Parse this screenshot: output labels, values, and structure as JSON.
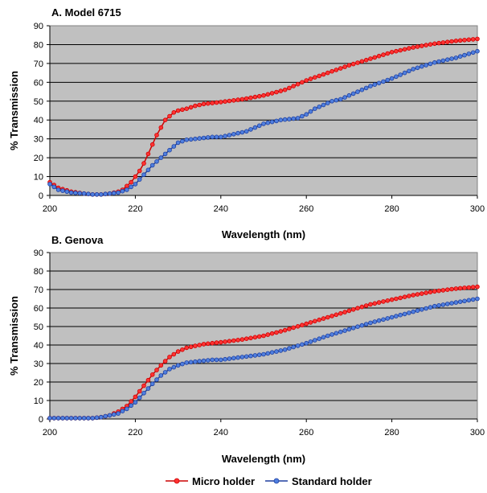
{
  "legend": [
    {
      "name": "Micro holder",
      "color": "#cc0000",
      "fill": "#ff3333"
    },
    {
      "name": "Standard holder",
      "color": "#1f3f9f",
      "fill": "#4f7fdf"
    }
  ],
  "chart_data": [
    {
      "type": "line",
      "title": "A. Model 6715",
      "xlabel": "Wavelength (nm)",
      "ylabel": "% Transmission",
      "xlim": [
        200,
        300
      ],
      "ylim": [
        0,
        90
      ],
      "xticks": [
        200,
        220,
        240,
        260,
        280,
        300
      ],
      "yticks": [
        0,
        10,
        20,
        30,
        40,
        50,
        60,
        70,
        80,
        90
      ],
      "grid": "horizontal",
      "plot_background": "#c0c0c0",
      "series": [
        {
          "name": "Micro holder",
          "x": [
            200,
            202,
            205,
            208,
            210,
            212,
            214,
            216,
            217,
            218,
            219,
            220,
            221,
            222,
            223,
            224,
            225,
            226,
            227,
            228,
            229,
            230,
            232,
            234,
            236,
            240,
            245,
            250,
            255,
            260,
            265,
            270,
            275,
            280,
            285,
            290,
            295,
            300
          ],
          "y": [
            7,
            4,
            2,
            1,
            0.5,
            0.5,
            1,
            2,
            3,
            5,
            7,
            10,
            13,
            17,
            22,
            27,
            32,
            36,
            40,
            42,
            44,
            45,
            46,
            47.5,
            48.5,
            49.5,
            51,
            53,
            56,
            61,
            65,
            69,
            72.5,
            76,
            78.5,
            80.5,
            82,
            83
          ]
        },
        {
          "name": "Standard holder",
          "x": [
            200,
            202,
            205,
            208,
            210,
            212,
            214,
            216,
            218,
            220,
            222,
            224,
            226,
            228,
            230,
            232,
            234,
            236,
            238,
            240,
            242,
            244,
            246,
            248,
            250,
            252,
            254,
            256,
            258,
            260,
            262,
            264,
            266,
            268,
            270,
            275,
            280,
            285,
            290,
            295,
            300
          ],
          "y": [
            6,
            3,
            1.5,
            1,
            0.5,
            0.5,
            1,
            1.5,
            3,
            6,
            11,
            16,
            20,
            24,
            28,
            29.5,
            30,
            30.5,
            31,
            31,
            32,
            33,
            34,
            36,
            38,
            39,
            40,
            40.5,
            41,
            43,
            46,
            48,
            50,
            51,
            53,
            58,
            62,
            67,
            70.5,
            73,
            76.5
          ]
        }
      ]
    },
    {
      "type": "line",
      "title": "B. Genova",
      "xlabel": "Wavelength (nm)",
      "ylabel": "% Transmission",
      "xlim": [
        200,
        300
      ],
      "ylim": [
        0,
        90
      ],
      "xticks": [
        200,
        220,
        240,
        260,
        280,
        300
      ],
      "yticks": [
        0,
        10,
        20,
        30,
        40,
        50,
        60,
        70,
        80,
        90
      ],
      "grid": "horizontal",
      "plot_background": "#c0c0c0",
      "series": [
        {
          "name": "Micro holder",
          "x": [
            200,
            205,
            210,
            212,
            214,
            216,
            218,
            220,
            222,
            224,
            226,
            228,
            230,
            232,
            234,
            236,
            238,
            240,
            245,
            250,
            255,
            260,
            265,
            270,
            275,
            280,
            285,
            290,
            295,
            300
          ],
          "y": [
            0.5,
            0.5,
            0.5,
            1,
            2,
            4,
            7,
            12,
            18,
            24,
            29,
            33.5,
            36.5,
            38.5,
            39.5,
            40.5,
            41,
            41.5,
            43,
            45,
            48,
            51.5,
            55,
            58.5,
            62,
            64.5,
            67,
            69,
            70.5,
            71.5
          ]
        },
        {
          "name": "Standard holder",
          "x": [
            200,
            205,
            210,
            212,
            214,
            216,
            218,
            220,
            222,
            224,
            226,
            228,
            230,
            232,
            234,
            236,
            238,
            240,
            245,
            250,
            255,
            260,
            265,
            270,
            275,
            280,
            285,
            290,
            295,
            300
          ],
          "y": [
            0.5,
            0.5,
            0.5,
            1,
            2,
            3,
            5.5,
            9,
            14,
            19,
            23.5,
            27,
            29,
            30.5,
            31,
            31.5,
            32,
            32,
            33.5,
            35,
            37.5,
            41,
            45,
            48.5,
            52,
            55,
            58,
            61,
            63,
            65
          ]
        }
      ]
    }
  ]
}
